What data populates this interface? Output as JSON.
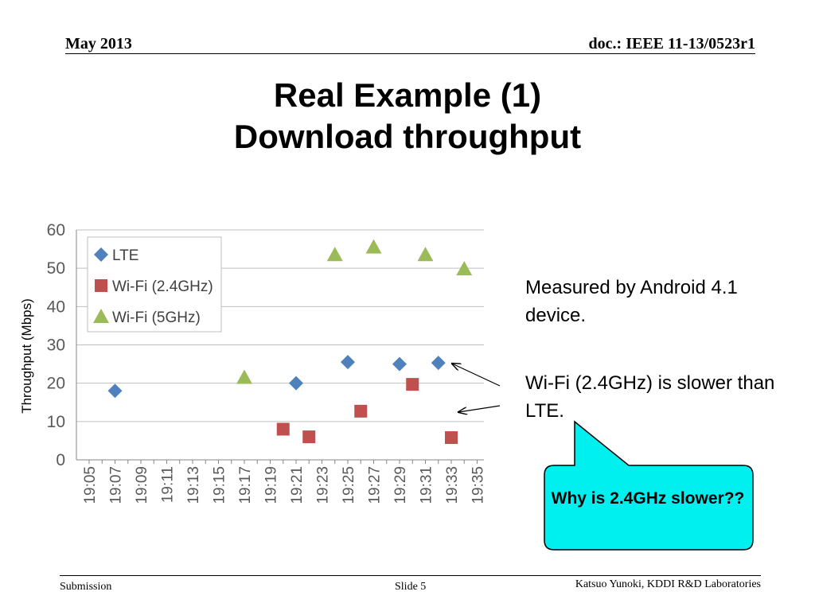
{
  "header": {
    "date": "May 2013",
    "doc": "doc.: IEEE 11-13/0523r1"
  },
  "title": {
    "line1": "Real Example (1)",
    "line2": "Download throughput"
  },
  "notes": {
    "measured": "Measured by Android 4.1 device.",
    "slower": "Wi-Fi (2.4GHz) is slower than LTE."
  },
  "callout": {
    "text": "Why is 2.4GHz slower??",
    "fill": "#00F0F0"
  },
  "footer": {
    "left": "Submission",
    "center": "Slide 5",
    "right": "Katsuo Yunoki, KDDI R&D Laboratories"
  },
  "chart_data": {
    "type": "scatter",
    "ylabel": "Throughput (Mbps)",
    "ylim": [
      0,
      60
    ],
    "yticks": [
      0,
      10,
      20,
      30,
      40,
      50,
      60
    ],
    "grid": true,
    "legend": "top-left",
    "xticks": [
      "19:05",
      "19:07",
      "19:09",
      "19:11",
      "19:13",
      "19:15",
      "19:17",
      "19:19",
      "19:21",
      "19:23",
      "19:25",
      "19:27",
      "19:29",
      "19:31",
      "19:33",
      "19:35"
    ],
    "series": [
      {
        "name": "LTE",
        "marker": "diamond",
        "color": "#4F81BD",
        "points": [
          [
            "19:07",
            18
          ],
          [
            "19:21",
            20
          ],
          [
            "19:25",
            25.5
          ],
          [
            "19:29",
            25
          ],
          [
            "19:32",
            25.3
          ]
        ]
      },
      {
        "name": "Wi-Fi (2.4GHz)",
        "marker": "square",
        "color": "#C0504D",
        "points": [
          [
            "19:20",
            8
          ],
          [
            "19:22",
            6
          ],
          [
            "19:26",
            12.7
          ],
          [
            "19:30",
            19.7
          ],
          [
            "19:33",
            5.8
          ]
        ]
      },
      {
        "name": "Wi-Fi (5GHz)",
        "marker": "triangle",
        "color": "#9BBB59",
        "points": [
          [
            "19:17",
            21.5
          ],
          [
            "19:24",
            53.5
          ],
          [
            "19:27",
            55.5
          ],
          [
            "19:31",
            53.5
          ],
          [
            "19:34",
            49.8
          ]
        ]
      }
    ]
  }
}
